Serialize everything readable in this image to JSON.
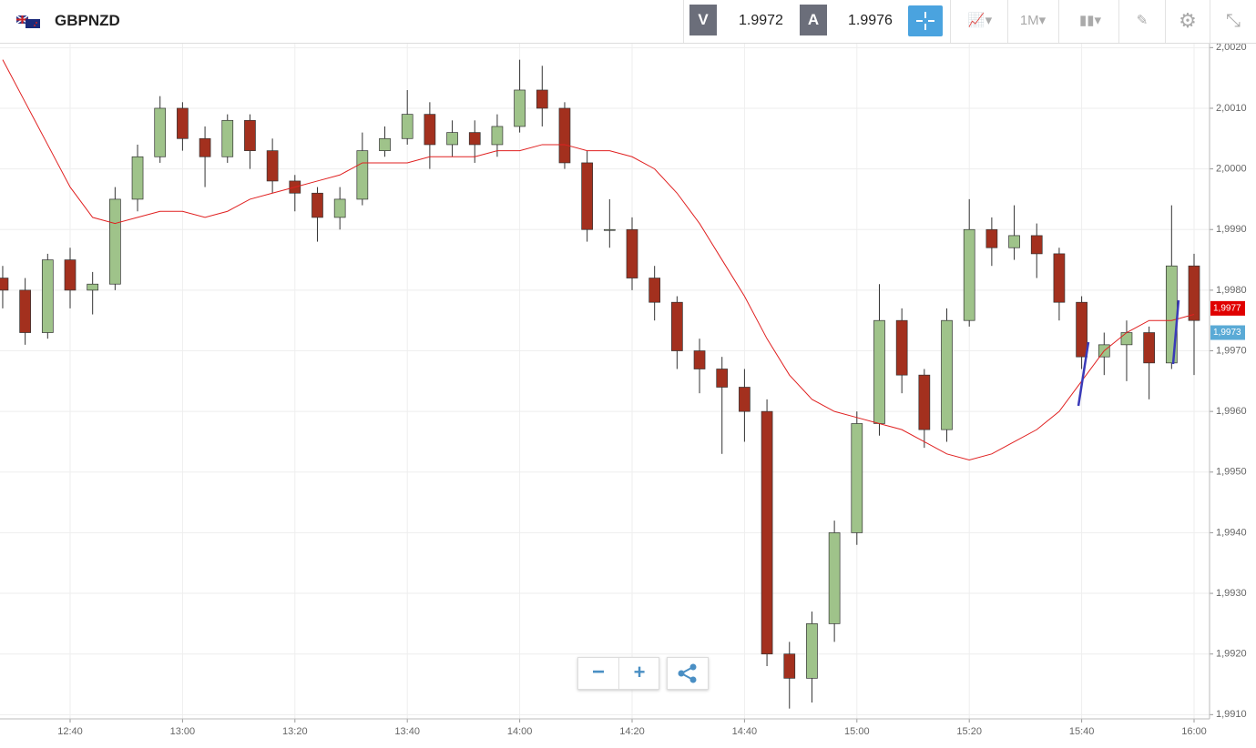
{
  "header": {
    "symbol": "GBPNZD",
    "sell_label": "V",
    "sell_price": "1.9972",
    "buy_label": "A",
    "buy_price": "1.9976",
    "timeframe": "1M"
  },
  "chart_data": {
    "type": "candlestick",
    "categories": [
      null,
      null,
      null,
      "12:40",
      null,
      null,
      null,
      null,
      "13:00",
      null,
      null,
      null,
      null,
      "13:20",
      null,
      null,
      null,
      null,
      "13:40",
      null,
      null,
      null,
      null,
      "14:00",
      null,
      null,
      null,
      null,
      "14:20",
      null,
      null,
      null,
      null,
      "14:40",
      null,
      null,
      null,
      null,
      "15:00",
      null,
      null,
      null,
      null,
      "15:20",
      null,
      null,
      null,
      null,
      "15:40",
      null,
      null,
      null,
      null,
      "16:00"
    ],
    "open": [
      1.9982,
      1.998,
      1.9973,
      1.9985,
      1.998,
      1.9981,
      1.9995,
      2.0002,
      2.001,
      2.0005,
      2.0002,
      2.0008,
      2.0003,
      1.9998,
      1.9996,
      1.9992,
      1.9995,
      2.0003,
      2.0005,
      2.0009,
      2.0004,
      2.0006,
      2.0004,
      2.0007,
      2.0013,
      2.001,
      2.0001,
      1.999,
      1.999,
      1.9982,
      1.9978,
      1.997,
      1.9967,
      1.9964,
      1.996,
      1.992,
      1.9916,
      1.9925,
      1.994,
      1.9958,
      1.9975,
      1.9966,
      1.9957,
      1.9975,
      1.999,
      1.9987,
      1.9989,
      1.9986,
      1.9978,
      1.9969,
      1.9971,
      1.9973,
      1.9968,
      1.9984
    ],
    "high": [
      1.9984,
      1.9982,
      1.9986,
      1.9987,
      1.9983,
      1.9997,
      2.0004,
      2.0012,
      2.0011,
      2.0007,
      2.0009,
      2.0009,
      2.0005,
      1.9999,
      1.9997,
      1.9997,
      2.0006,
      2.0007,
      2.0013,
      2.0011,
      2.0008,
      2.0008,
      2.0009,
      2.0018,
      2.0017,
      2.0011,
      2.0003,
      1.9995,
      1.9992,
      1.9984,
      1.9979,
      1.9972,
      1.9969,
      1.9967,
      1.9962,
      1.9922,
      1.9927,
      1.9942,
      1.996,
      1.9981,
      1.9977,
      1.9967,
      1.9977,
      1.9995,
      1.9992,
      1.9994,
      1.9991,
      1.9987,
      1.9979,
      1.9973,
      1.9975,
      1.9974,
      1.9994,
      1.9986
    ],
    "low": [
      1.9977,
      1.9971,
      1.9972,
      1.9977,
      1.9976,
      1.998,
      1.9993,
      2.0001,
      2.0003,
      1.9997,
      2.0001,
      2.0,
      1.9996,
      1.9993,
      1.9988,
      1.999,
      1.9994,
      2.0002,
      2.0004,
      2.0,
      2.0002,
      2.0001,
      2.0002,
      2.0006,
      2.0007,
      2.0,
      1.9988,
      1.9987,
      1.998,
      1.9975,
      1.9967,
      1.9963,
      1.9953,
      1.9955,
      1.9918,
      1.9911,
      1.9912,
      1.9922,
      1.9938,
      1.9956,
      1.9963,
      1.9954,
      1.9955,
      1.9974,
      1.9984,
      1.9985,
      1.9982,
      1.9975,
      1.9967,
      1.9966,
      1.9965,
      1.9962,
      1.9967,
      1.9966
    ],
    "close": [
      1.998,
      1.9973,
      1.9985,
      1.998,
      1.9981,
      1.9995,
      2.0002,
      2.001,
      2.0005,
      2.0002,
      2.0008,
      2.0003,
      1.9998,
      1.9996,
      1.9992,
      1.9995,
      2.0003,
      2.0005,
      2.0009,
      2.0004,
      2.0006,
      2.0004,
      2.0007,
      2.0013,
      2.001,
      2.0001,
      1.999,
      1.999,
      1.9982,
      1.9978,
      1.997,
      1.9967,
      1.9964,
      1.996,
      1.992,
      1.9916,
      1.9925,
      1.994,
      1.9958,
      1.9975,
      1.9966,
      1.9957,
      1.9975,
      1.999,
      1.9987,
      1.9989,
      1.9986,
      1.9978,
      1.9969,
      1.9971,
      1.9973,
      1.9968,
      1.9984,
      1.9975
    ],
    "up_color": "#9fc38a",
    "down_color": "#a3301e",
    "moving_average": {
      "color": "#e02020",
      "values": [
        2.0018,
        2.0011,
        2.0004,
        1.9997,
        1.9992,
        1.9991,
        1.9992,
        1.9993,
        1.9993,
        1.9992,
        1.9993,
        1.9995,
        1.9996,
        1.9997,
        1.9998,
        1.9999,
        2.0001,
        2.0001,
        2.0001,
        2.0002,
        2.0002,
        2.0002,
        2.0003,
        2.0003,
        2.0004,
        2.0004,
        2.0003,
        2.0003,
        2.0002,
        2.0,
        1.9996,
        1.9991,
        1.9985,
        1.9979,
        1.9972,
        1.9966,
        1.9962,
        1.996,
        1.9959,
        1.9958,
        1.9957,
        1.9955,
        1.9953,
        1.9952,
        1.9953,
        1.9955,
        1.9957,
        1.996,
        1.9965,
        1.997,
        1.9973,
        1.9975,
        1.9975,
        1.9976
      ]
    },
    "ylim": [
      1.99093,
      2.00208
    ],
    "yticks": [
      {
        "value": 1.991,
        "label": "1,9910"
      },
      {
        "value": 1.992,
        "label": "1,9920"
      },
      {
        "value": 1.993,
        "label": "1,9930"
      },
      {
        "value": 1.994,
        "label": "1,9940"
      },
      {
        "value": 1.995,
        "label": "1,9950"
      },
      {
        "value": 1.996,
        "label": "1,9960"
      },
      {
        "value": 1.997,
        "label": "1,9970"
      },
      {
        "value": 1.998,
        "label": "1,9980"
      },
      {
        "value": 1.999,
        "label": "1,9990"
      },
      {
        "value": 2.0,
        "label": "2,0000"
      },
      {
        "value": 2.001,
        "label": "2,0010"
      },
      {
        "value": 2.002,
        "label": "2,0020"
      }
    ],
    "grid": true,
    "price_tags": [
      {
        "value": 1.9977,
        "label": "1,9977",
        "color": "#e00000"
      },
      {
        "value": 1.9973,
        "label": "1,9973",
        "color": "#5aaad6"
      }
    ]
  }
}
